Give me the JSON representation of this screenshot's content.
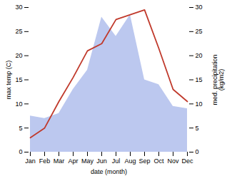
{
  "chart_data": {
    "type": "line",
    "xlabel": "date (month)",
    "ylabel": "max temp (C)",
    "y2label": "med. precipitation\n(kg/m2)",
    "categories": [
      "Jan",
      "Feb",
      "Mar",
      "Apr",
      "May",
      "Jun",
      "Jul",
      "Aug",
      "Sep",
      "Oct",
      "Nov",
      "Dec"
    ],
    "series": [
      {
        "type": "area",
        "axis": "y2",
        "color": "#bcc8ef",
        "values": [
          7.5,
          7.0,
          8.0,
          13.0,
          17.0,
          28.0,
          24.0,
          28.5,
          15.0,
          14.0,
          9.5,
          9.0
        ]
      },
      {
        "type": "line",
        "color": "#c0392b",
        "values": [
          3.0,
          5.0,
          10.5,
          15.5,
          21.0,
          22.5,
          27.5,
          28.5,
          29.5,
          21.5,
          13.0,
          10.5
        ]
      }
    ],
    "ylim": [
      0,
      30
    ],
    "yticks": [
      0,
      5,
      10,
      15,
      20,
      25,
      30
    ],
    "y2lim": [
      0,
      30
    ],
    "y2ticks": [
      0,
      5,
      10,
      15,
      20,
      25,
      30
    ]
  }
}
